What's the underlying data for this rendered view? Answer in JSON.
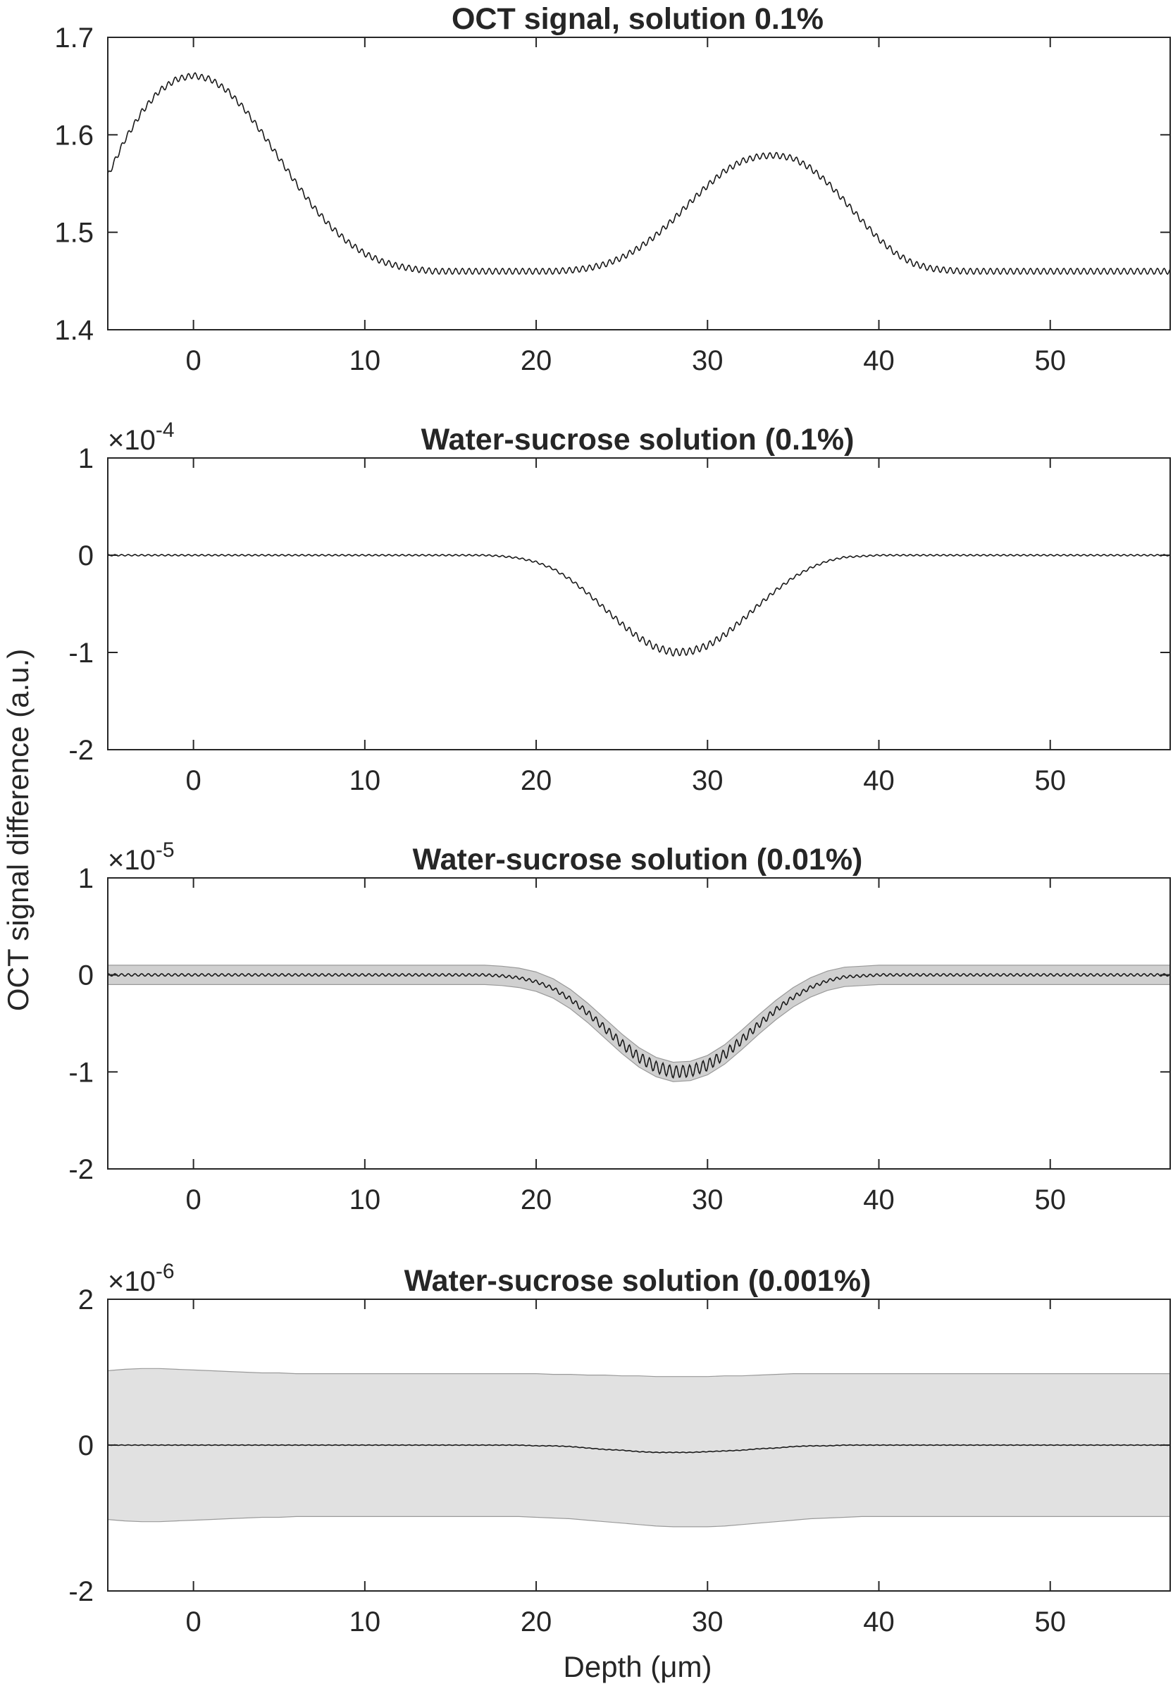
{
  "figure": {
    "ylabel": "OCT signal difference (a.u.)",
    "xlabel": "Depth (μm)"
  },
  "chart_data": [
    {
      "type": "line",
      "title": "OCT signal, solution 0.1%",
      "exponent": "",
      "xlim": [
        -5,
        57
      ],
      "ylim": [
        1.4,
        1.7
      ],
      "xticks": [
        0,
        10,
        20,
        30,
        40,
        50
      ],
      "yticks": [
        1.4,
        1.5,
        1.6,
        1.7
      ],
      "ytick_labels": [
        "1.4",
        "1.5",
        "1.6",
        "1.7"
      ],
      "x": [
        -5,
        -4,
        -3,
        -2,
        -1,
        0,
        1,
        2,
        3,
        4,
        5,
        6,
        7,
        8,
        9,
        10,
        11,
        12,
        13,
        14,
        15,
        16,
        17,
        18,
        19,
        20,
        21,
        22,
        23,
        24,
        25,
        26,
        27,
        28,
        29,
        30,
        31,
        32,
        33,
        34,
        35,
        36,
        37,
        38,
        39,
        40,
        41,
        42,
        43,
        44,
        45,
        46,
        47,
        48,
        49,
        50,
        51,
        52,
        53,
        54,
        55,
        56,
        57
      ],
      "values": [
        1.558,
        1.595,
        1.624,
        1.645,
        1.657,
        1.661,
        1.657,
        1.645,
        1.626,
        1.602,
        1.576,
        1.55,
        1.526,
        1.506,
        1.49,
        1.478,
        1.47,
        1.465,
        1.462,
        1.46,
        1.46,
        1.46,
        1.46,
        1.46,
        1.46,
        1.46,
        1.46,
        1.461,
        1.463,
        1.467,
        1.474,
        1.484,
        1.497,
        1.513,
        1.531,
        1.548,
        1.563,
        1.573,
        1.578,
        1.579,
        1.576,
        1.566,
        1.551,
        1.532,
        1.512,
        1.493,
        1.478,
        1.468,
        1.463,
        1.461,
        1.46,
        1.46,
        1.46,
        1.46,
        1.46,
        1.46,
        1.46,
        1.46,
        1.46,
        1.46,
        1.46,
        1.46,
        1.46
      ],
      "ripple_amplitude": 0.003,
      "band_upper": [],
      "band_lower": []
    },
    {
      "type": "line",
      "title": "Water-sucrose solution (0.1%)",
      "exponent": "-4",
      "xlim": [
        -5,
        57
      ],
      "ylim": [
        -2,
        1
      ],
      "xticks": [
        0,
        10,
        20,
        30,
        40,
        50
      ],
      "yticks": [
        -2,
        -1,
        0,
        1
      ],
      "ytick_labels": [
        "-2",
        "-1",
        "0",
        "1"
      ],
      "x": [
        -5,
        -4,
        -3,
        -2,
        -1,
        0,
        1,
        2,
        3,
        4,
        5,
        6,
        7,
        8,
        9,
        10,
        11,
        12,
        13,
        14,
        15,
        16,
        17,
        18,
        19,
        20,
        21,
        22,
        23,
        24,
        25,
        26,
        27,
        28,
        29,
        30,
        31,
        32,
        33,
        34,
        35,
        36,
        37,
        38,
        39,
        40,
        41,
        42,
        43,
        44,
        45,
        46,
        47,
        48,
        49,
        50,
        51,
        52,
        53,
        54,
        55,
        56,
        57
      ],
      "values": [
        0,
        0,
        0,
        0,
        0,
        0,
        0,
        0,
        0,
        0,
        0,
        0,
        0,
        0,
        0,
        0,
        0,
        0,
        0,
        0,
        0,
        0,
        0,
        -0.01,
        -0.03,
        -0.07,
        -0.14,
        -0.25,
        -0.39,
        -0.55,
        -0.71,
        -0.85,
        -0.95,
        -1.0,
        -0.99,
        -0.93,
        -0.82,
        -0.67,
        -0.51,
        -0.36,
        -0.23,
        -0.13,
        -0.06,
        -0.02,
        -0.01,
        0,
        0,
        0,
        0,
        0,
        0,
        0,
        0,
        0,
        0,
        0,
        0,
        0,
        0,
        0,
        0,
        0,
        0
      ],
      "ripple_amplitude": 0.03,
      "band_upper": [],
      "band_lower": []
    },
    {
      "type": "line",
      "title": "Water-sucrose solution (0.01%)",
      "exponent": "-5",
      "xlim": [
        -5,
        57
      ],
      "ylim": [
        -2,
        1
      ],
      "xticks": [
        0,
        10,
        20,
        30,
        40,
        50
      ],
      "yticks": [
        -2,
        -1,
        0,
        1
      ],
      "ytick_labels": [
        "-2",
        "-1",
        "0",
        "1"
      ],
      "x": [
        -5,
        -4,
        -3,
        -2,
        -1,
        0,
        1,
        2,
        3,
        4,
        5,
        6,
        7,
        8,
        9,
        10,
        11,
        12,
        13,
        14,
        15,
        16,
        17,
        18,
        19,
        20,
        21,
        22,
        23,
        24,
        25,
        26,
        27,
        28,
        29,
        30,
        31,
        32,
        33,
        34,
        35,
        36,
        37,
        38,
        39,
        40,
        41,
        42,
        43,
        44,
        45,
        46,
        47,
        48,
        49,
        50,
        51,
        52,
        53,
        54,
        55,
        56,
        57
      ],
      "values": [
        0,
        0,
        0,
        0,
        0,
        0,
        0,
        0,
        0,
        0,
        0,
        0,
        0,
        0,
        0,
        0,
        0,
        0,
        0,
        0,
        0,
        0,
        0,
        -0.01,
        -0.03,
        -0.07,
        -0.14,
        -0.25,
        -0.39,
        -0.55,
        -0.71,
        -0.85,
        -0.95,
        -1.0,
        -0.99,
        -0.93,
        -0.82,
        -0.67,
        -0.51,
        -0.36,
        -0.23,
        -0.13,
        -0.06,
        -0.02,
        -0.01,
        0,
        0,
        0,
        0,
        0,
        0,
        0,
        0,
        0,
        0,
        0,
        0,
        0,
        0,
        0,
        0,
        0,
        0
      ],
      "ripple_amplitude": 0.05,
      "band_upper": [
        0.1,
        0.1,
        0.1,
        0.1,
        0.1,
        0.1,
        0.1,
        0.1,
        0.1,
        0.1,
        0.1,
        0.1,
        0.1,
        0.1,
        0.1,
        0.1,
        0.1,
        0.1,
        0.1,
        0.1,
        0.1,
        0.1,
        0.1,
        0.09,
        0.07,
        0.03,
        -0.04,
        -0.15,
        -0.29,
        -0.45,
        -0.61,
        -0.75,
        -0.85,
        -0.9,
        -0.89,
        -0.83,
        -0.72,
        -0.57,
        -0.41,
        -0.26,
        -0.13,
        -0.03,
        0.04,
        0.08,
        0.09,
        0.1,
        0.1,
        0.1,
        0.1,
        0.1,
        0.1,
        0.1,
        0.1,
        0.1,
        0.1,
        0.1,
        0.1,
        0.1,
        0.1,
        0.1,
        0.1,
        0.1,
        0.1
      ],
      "band_lower": [
        -0.1,
        -0.1,
        -0.1,
        -0.1,
        -0.1,
        -0.1,
        -0.1,
        -0.1,
        -0.1,
        -0.1,
        -0.1,
        -0.1,
        -0.1,
        -0.1,
        -0.1,
        -0.1,
        -0.1,
        -0.1,
        -0.1,
        -0.1,
        -0.1,
        -0.1,
        -0.1,
        -0.11,
        -0.13,
        -0.17,
        -0.24,
        -0.35,
        -0.49,
        -0.65,
        -0.81,
        -0.95,
        -1.05,
        -1.1,
        -1.09,
        -1.03,
        -0.92,
        -0.77,
        -0.61,
        -0.46,
        -0.33,
        -0.23,
        -0.16,
        -0.12,
        -0.11,
        -0.1,
        -0.1,
        -0.1,
        -0.1,
        -0.1,
        -0.1,
        -0.1,
        -0.1,
        -0.1,
        -0.1,
        -0.1,
        -0.1,
        -0.1,
        -0.1,
        -0.1,
        -0.1,
        -0.1,
        -0.1
      ]
    },
    {
      "type": "line",
      "title": "Water-sucrose solution (0.001%)",
      "exponent": "-6",
      "xlim": [
        -5,
        57
      ],
      "ylim": [
        -2,
        2
      ],
      "xticks": [
        0,
        10,
        20,
        30,
        40,
        50
      ],
      "yticks": [
        -2,
        0,
        2
      ],
      "ytick_labels": [
        "-2",
        "0",
        "2"
      ],
      "x": [
        -5,
        -4,
        -3,
        -2,
        -1,
        0,
        1,
        2,
        3,
        4,
        5,
        6,
        7,
        8,
        9,
        10,
        11,
        12,
        13,
        14,
        15,
        16,
        17,
        18,
        19,
        20,
        21,
        22,
        23,
        24,
        25,
        26,
        27,
        28,
        29,
        30,
        31,
        32,
        33,
        34,
        35,
        36,
        37,
        38,
        39,
        40,
        41,
        42,
        43,
        44,
        45,
        46,
        47,
        48,
        49,
        50,
        51,
        52,
        53,
        54,
        55,
        56,
        57
      ],
      "values": [
        0,
        0,
        0,
        0,
        0,
        0,
        0,
        0,
        0,
        0,
        0,
        0,
        0,
        0,
        0,
        0,
        0,
        0,
        0,
        0,
        0,
        0,
        0,
        0,
        0,
        -0.01,
        -0.01,
        -0.02,
        -0.04,
        -0.06,
        -0.07,
        -0.09,
        -0.1,
        -0.1,
        -0.1,
        -0.09,
        -0.08,
        -0.07,
        -0.05,
        -0.04,
        -0.02,
        -0.01,
        -0.01,
        0,
        0,
        0,
        0,
        0,
        0,
        0,
        0,
        0,
        0,
        0,
        0,
        0,
        0,
        0,
        0,
        0,
        0,
        0,
        0
      ],
      "ripple_amplitude": 0.004,
      "band_upper": [
        1.02,
        1.04,
        1.05,
        1.05,
        1.04,
        1.03,
        1.02,
        1.01,
        1.0,
        0.99,
        0.99,
        0.98,
        0.98,
        0.98,
        0.98,
        0.98,
        0.98,
        0.98,
        0.98,
        0.98,
        0.98,
        0.98,
        0.98,
        0.98,
        0.98,
        0.98,
        0.97,
        0.97,
        0.96,
        0.96,
        0.95,
        0.95,
        0.94,
        0.94,
        0.94,
        0.94,
        0.95,
        0.95,
        0.96,
        0.97,
        0.98,
        0.98,
        0.98,
        0.98,
        0.98,
        0.98,
        0.98,
        0.98,
        0.98,
        0.98,
        0.98,
        0.98,
        0.98,
        0.98,
        0.98,
        0.98,
        0.98,
        0.98,
        0.98,
        0.98,
        0.98,
        0.98,
        0.98
      ],
      "band_lower": [
        -1.02,
        -1.04,
        -1.05,
        -1.05,
        -1.04,
        -1.03,
        -1.02,
        -1.01,
        -1.0,
        -0.99,
        -0.99,
        -0.98,
        -0.98,
        -0.98,
        -0.98,
        -0.98,
        -0.98,
        -0.98,
        -0.98,
        -0.98,
        -0.98,
        -0.98,
        -0.98,
        -0.98,
        -0.98,
        -0.99,
        -1.0,
        -1.01,
        -1.03,
        -1.05,
        -1.07,
        -1.09,
        -1.11,
        -1.12,
        -1.12,
        -1.12,
        -1.11,
        -1.09,
        -1.07,
        -1.05,
        -1.03,
        -1.01,
        -1.0,
        -0.99,
        -0.98,
        -0.98,
        -0.98,
        -0.98,
        -0.98,
        -0.98,
        -0.98,
        -0.98,
        -0.98,
        -0.98,
        -0.98,
        -0.98,
        -0.98,
        -0.98,
        -0.98,
        -0.98,
        -0.98,
        -0.98,
        -0.98
      ]
    }
  ]
}
